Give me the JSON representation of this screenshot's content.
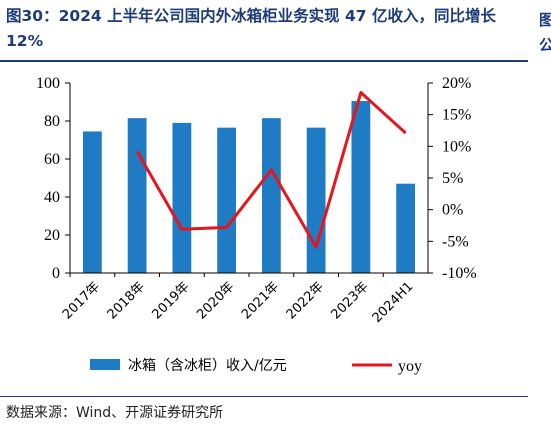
{
  "title": "图30：2024 上半年公司国内外冰箱柜业务实现 47 亿收入，同比增长 12%",
  "side_fragment": "图 公",
  "source": "数据来源：Wind、开源证券研究所",
  "colors": {
    "bar": "#1f7bc4",
    "line": "#e8141c",
    "title": "#1f3c7a"
  },
  "chart_data": {
    "type": "bar",
    "categories": [
      "2017年",
      "2018年",
      "2019年",
      "2020年",
      "2021年",
      "2022年",
      "2023年",
      "2024H1"
    ],
    "series": [
      {
        "name": "冰箱（含冰柜）收入/亿元",
        "type": "bar",
        "axis": "left",
        "values": [
          74.5,
          81.5,
          79,
          76.5,
          81.5,
          76.5,
          90.5,
          47
        ]
      },
      {
        "name": "yoy",
        "type": "line",
        "axis": "right",
        "values": [
          null,
          9.2,
          -3.1,
          -2.8,
          6.3,
          -5.9,
          18.5,
          12.1
        ]
      }
    ],
    "ylim": [
      0,
      100
    ],
    "yticks": [
      0,
      20,
      40,
      60,
      80,
      100
    ],
    "y2lim": [
      -10,
      20
    ],
    "y2ticks": [
      "-10%",
      "-5%",
      "0%",
      "5%",
      "10%",
      "15%",
      "20%"
    ],
    "legend": "bottom",
    "grid": false
  }
}
